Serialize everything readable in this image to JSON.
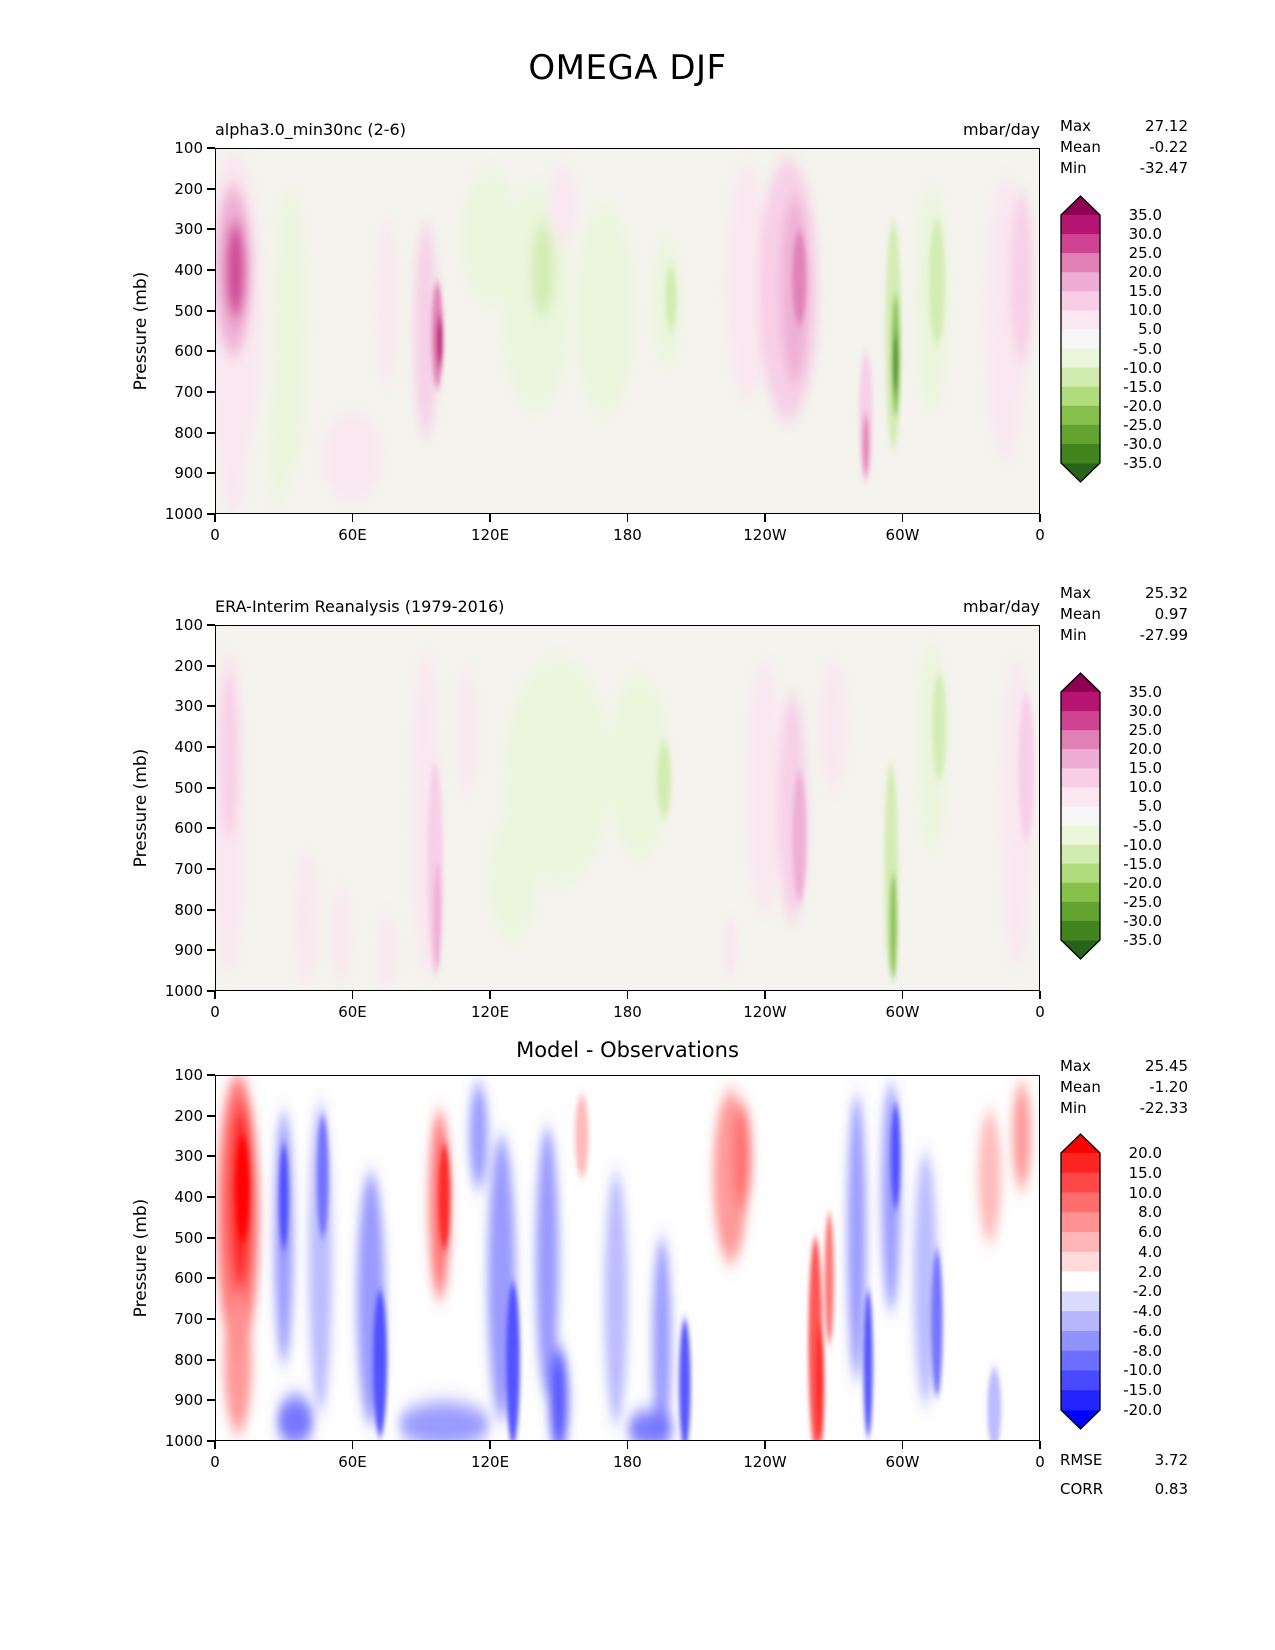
{
  "title": "OMEGA DJF",
  "axes": {
    "x_tick_labels": [
      "0",
      "60E",
      "120E",
      "180",
      "120W",
      "60W",
      "0"
    ],
    "y_tick_labels": [
      "100",
      "200",
      "300",
      "400",
      "500",
      "600",
      "700",
      "800",
      "900",
      "1000"
    ],
    "y_label": "Pressure (mb)"
  },
  "panels": [
    {
      "title": "alpha3.0_min30nc (2-6)",
      "units": "mbar/day",
      "stats": [
        {
          "label": "Max",
          "value": "27.12"
        },
        {
          "label": "Mean",
          "value": "-0.22"
        },
        {
          "label": "Min",
          "value": "-32.47"
        }
      ],
      "colorbar_tick_labels": [
        "35.0",
        "30.0",
        "25.0",
        "20.0",
        "15.0",
        "10.0",
        "5.0",
        "-5.0",
        "-10.0",
        "-15.0",
        "-20.0",
        "-25.0",
        "-30.0",
        "-35.0"
      ]
    },
    {
      "title": "ERA-Interim Reanalysis (1979-2016)",
      "units": "mbar/day",
      "stats": [
        {
          "label": "Max",
          "value": "25.32"
        },
        {
          "label": "Mean",
          "value": "0.97"
        },
        {
          "label": "Min",
          "value": "-27.99"
        }
      ],
      "colorbar_tick_labels": [
        "35.0",
        "30.0",
        "25.0",
        "20.0",
        "15.0",
        "10.0",
        "5.0",
        "-5.0",
        "-10.0",
        "-15.0",
        "-20.0",
        "-25.0",
        "-30.0",
        "-35.0"
      ]
    },
    {
      "title": "Model - Observations",
      "units": "",
      "stats": [
        {
          "label": "Max",
          "value": "25.45"
        },
        {
          "label": "Mean",
          "value": "-1.20"
        },
        {
          "label": "Min",
          "value": "-22.33"
        }
      ],
      "extra_stats": [
        {
          "label": "RMSE",
          "value": "3.72"
        },
        {
          "label": "CORR",
          "value": "0.83"
        }
      ],
      "colorbar_tick_labels": [
        "20.0",
        "15.0",
        "10.0",
        "8.0",
        "6.0",
        "4.0",
        "2.0",
        "-2.0",
        "-4.0",
        "-6.0",
        "-8.0",
        "-10.0",
        "-15.0",
        "-20.0"
      ]
    }
  ],
  "chart_data": {
    "type": "heatmap",
    "subtype": "filled-contour pressure-longitude cross sections, 3 stacked panels",
    "title": "OMEGA DJF",
    "x_axis": {
      "ticks": [
        "0",
        "60E",
        "120E",
        "180",
        "120W",
        "60W",
        "0"
      ],
      "range_deg_east": [
        0,
        360
      ]
    },
    "y_axis": {
      "label": "Pressure (mb)",
      "ticks": [
        100,
        200,
        300,
        400,
        500,
        600,
        700,
        800,
        900,
        1000
      ],
      "inverted": true
    },
    "features_legend": "each feature = [lon_deg_0to360_east, pressure_mb_center, width_deg, height_mb, value_mbar_per_day]",
    "panels": [
      {
        "name": "alpha3.0_min30nc (2-6)",
        "units": "mbar/day",
        "max": 27.12,
        "mean": -0.22,
        "min": -32.47,
        "background": "#f4f3ee",
        "colormap": {
          "boundaries": [
            -35,
            -30,
            -25,
            -20,
            -15,
            -10,
            -5,
            5,
            10,
            15,
            20,
            25,
            30,
            35
          ],
          "colors_low_to_high": [
            "#276419",
            "#42851f",
            "#62a42f",
            "#87c14b",
            "#b0dc7c",
            "#d2ecb0",
            "#ebf6db",
            "#f7f7f7",
            "#fbe7f1",
            "#f8cee6",
            "#eeadd4",
            "#e180b4",
            "#d04292",
            "#b51471",
            "#8e0152"
          ]
        },
        "features": [
          [
            8,
            500,
            26,
            780,
            8
          ],
          [
            8,
            400,
            16,
            420,
            18
          ],
          [
            9,
            400,
            9,
            240,
            26
          ],
          [
            8,
            880,
            10,
            260,
            7
          ],
          [
            33,
            550,
            14,
            700,
            -7
          ],
          [
            28,
            820,
            9,
            340,
            -9
          ],
          [
            75,
            480,
            9,
            420,
            6
          ],
          [
            60,
            860,
            26,
            220,
            6
          ],
          [
            92,
            550,
            10,
            520,
            11
          ],
          [
            97,
            560,
            5,
            260,
            21
          ],
          [
            98,
            575,
            2.6,
            130,
            31
          ],
          [
            120,
            320,
            24,
            340,
            -7
          ],
          [
            140,
            470,
            30,
            560,
            -8
          ],
          [
            143,
            400,
            10,
            230,
            -13
          ],
          [
            152,
            240,
            12,
            190,
            6
          ],
          [
            170,
            500,
            26,
            520,
            -7
          ],
          [
            197,
            480,
            12,
            320,
            -8
          ],
          [
            199,
            470,
            5,
            160,
            -14
          ],
          [
            232,
            430,
            18,
            580,
            8
          ],
          [
            250,
            450,
            26,
            640,
            11
          ],
          [
            253,
            450,
            12,
            460,
            18
          ],
          [
            255,
            420,
            6,
            230,
            23
          ],
          [
            284,
            760,
            6,
            320,
            13
          ],
          [
            284,
            830,
            3,
            150,
            23
          ],
          [
            296,
            560,
            7,
            560,
            -11
          ],
          [
            297,
            610,
            3.6,
            300,
            -23
          ],
          [
            297,
            630,
            2,
            150,
            -33
          ],
          [
            313,
            470,
            14,
            560,
            -8
          ],
          [
            315,
            430,
            7,
            310,
            -13
          ],
          [
            345,
            520,
            18,
            700,
            7
          ],
          [
            352,
            420,
            10,
            420,
            10
          ]
        ]
      },
      {
        "name": "ERA-Interim Reanalysis (1979-2016)",
        "units": "mbar/day",
        "max": 25.32,
        "mean": 0.97,
        "min": -27.99,
        "background": "#f4f3ee",
        "colormap": {
          "boundaries": [
            -35,
            -30,
            -25,
            -20,
            -15,
            -10,
            -5,
            5,
            10,
            15,
            20,
            25,
            30,
            35
          ],
          "colors_low_to_high": [
            "#276419",
            "#42851f",
            "#62a42f",
            "#87c14b",
            "#b0dc7c",
            "#d2ecb0",
            "#ebf6db",
            "#f7f7f7",
            "#fbe7f1",
            "#f8cee6",
            "#eeadd4",
            "#e180b4",
            "#d04292",
            "#b51471",
            "#8e0152"
          ]
        },
        "features": [
          [
            6,
            560,
            14,
            800,
            8
          ],
          [
            6,
            420,
            8,
            420,
            12
          ],
          [
            40,
            820,
            10,
            330,
            6
          ],
          [
            55,
            860,
            8,
            240,
            6
          ],
          [
            75,
            900,
            8,
            190,
            6
          ],
          [
            92,
            560,
            12,
            800,
            7
          ],
          [
            96,
            700,
            7,
            520,
            12
          ],
          [
            97,
            820,
            3.4,
            260,
            17
          ],
          [
            110,
            360,
            8,
            320,
            6
          ],
          [
            150,
            460,
            46,
            560,
            -6
          ],
          [
            185,
            450,
            26,
            460,
            -8
          ],
          [
            196,
            480,
            6,
            190,
            -13
          ],
          [
            130,
            720,
            20,
            320,
            -6
          ],
          [
            240,
            500,
            16,
            620,
            7
          ],
          [
            252,
            550,
            12,
            560,
            12
          ],
          [
            255,
            620,
            6,
            320,
            16
          ],
          [
            270,
            350,
            12,
            320,
            6
          ],
          [
            295,
            700,
            6,
            520,
            -11
          ],
          [
            296,
            840,
            3.2,
            260,
            -21
          ],
          [
            313,
            400,
            12,
            520,
            -8
          ],
          [
            316,
            350,
            6,
            260,
            -12
          ],
          [
            350,
            560,
            14,
            760,
            7
          ],
          [
            354,
            450,
            7,
            360,
            11
          ],
          [
            225,
            890,
            6,
            150,
            6
          ]
        ]
      },
      {
        "name": "Model - Observations",
        "max": 25.45,
        "mean": -1.2,
        "min": -22.33,
        "rmse": 3.72,
        "corr": 0.83,
        "background": "#fefefe",
        "colormap": {
          "boundaries": [
            -20,
            -15,
            -10,
            -8,
            -6,
            -4,
            -2,
            2,
            4,
            6,
            8,
            10,
            15,
            20
          ],
          "colors_low_to_high": [
            "#0000ff",
            "#2424ff",
            "#4949ff",
            "#6d6dff",
            "#9292ff",
            "#b6b6ff",
            "#dbdbff",
            "#ffffff",
            "#ffdbdb",
            "#ffb6b6",
            "#ff9292",
            "#ff6d6d",
            "#ff4949",
            "#ff2424",
            "#ff0000"
          ]
        },
        "features": [
          [
            10,
            450,
            18,
            700,
            9
          ],
          [
            11,
            400,
            10,
            460,
            16
          ],
          [
            12,
            380,
            6,
            260,
            22
          ],
          [
            10,
            810,
            12,
            340,
            6
          ],
          [
            30,
            500,
            8,
            620,
            -7
          ],
          [
            30,
            400,
            4,
            260,
            -11
          ],
          [
            46,
            550,
            10,
            760,
            -6
          ],
          [
            47,
            350,
            5,
            300,
            -9
          ],
          [
            68,
            650,
            12,
            620,
            -7
          ],
          [
            72,
            810,
            6,
            360,
            -11
          ],
          [
            98,
            420,
            9,
            460,
            9
          ],
          [
            100,
            400,
            5,
            260,
            16
          ],
          [
            115,
            250,
            8,
            260,
            -8
          ],
          [
            125,
            600,
            12,
            700,
            -7
          ],
          [
            130,
            810,
            6,
            400,
            -12
          ],
          [
            145,
            560,
            10,
            660,
            -7
          ],
          [
            150,
            900,
            8,
            260,
            -13
          ],
          [
            160,
            250,
            6,
            200,
            5
          ],
          [
            175,
            650,
            10,
            620,
            -6
          ],
          [
            195,
            760,
            8,
            520,
            -8
          ],
          [
            205,
            860,
            5,
            320,
            -12
          ],
          [
            225,
            350,
            15,
            420,
            6
          ],
          [
            230,
            300,
            8,
            260,
            9
          ],
          [
            262,
            760,
            6,
            520,
            10
          ],
          [
            264,
            860,
            3.5,
            300,
            19
          ],
          [
            268,
            600,
            4,
            320,
            8
          ],
          [
            280,
            500,
            8,
            700,
            -8
          ],
          [
            285,
            810,
            4,
            360,
            -13
          ],
          [
            295,
            400,
            8,
            560,
            -8
          ],
          [
            297,
            300,
            4,
            260,
            -12
          ],
          [
            310,
            600,
            10,
            620,
            -6
          ],
          [
            315,
            710,
            5,
            360,
            -9
          ],
          [
            338,
            350,
            10,
            320,
            5
          ],
          [
            352,
            250,
            8,
            260,
            6
          ],
          [
            35,
            950,
            16,
            120,
            -9
          ],
          [
            100,
            960,
            40,
            110,
            -8
          ],
          [
            190,
            970,
            20,
            90,
            -10
          ],
          [
            340,
            920,
            6,
            200,
            -6
          ]
        ]
      }
    ]
  }
}
